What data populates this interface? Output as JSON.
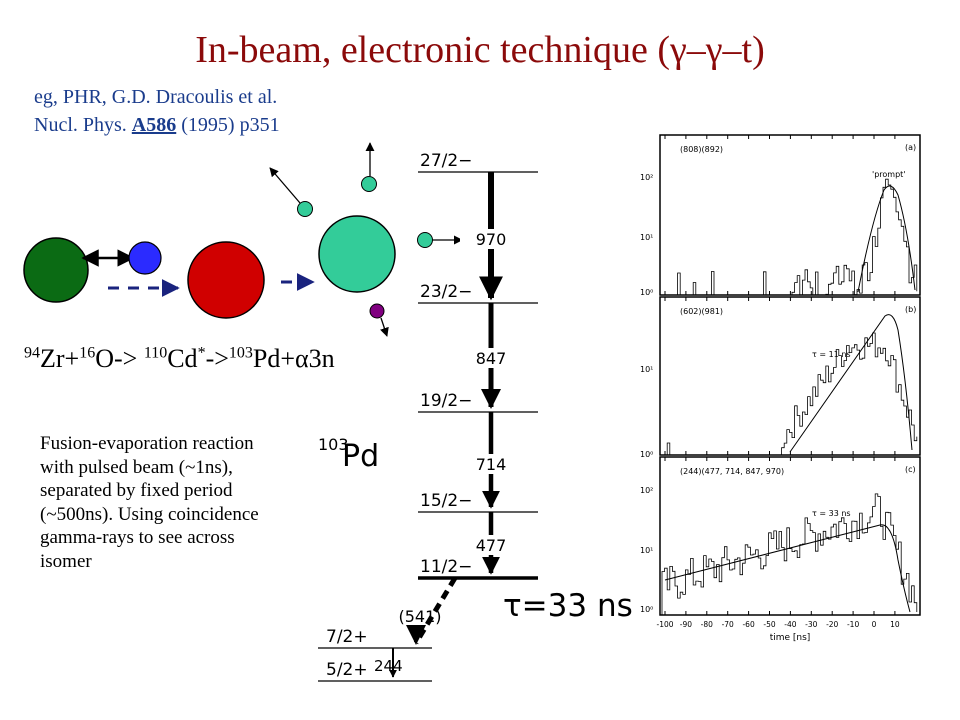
{
  "title": "In-beam, electronic technique (γ–γ–t)",
  "reference": {
    "line1": "eg, PHR, G.D. Dracoulis et al.",
    "line2_prefix": "Nucl. Phys.",
    "volume": "A586",
    "line2_suffix": "(1995) p351"
  },
  "reaction": {
    "target_mass": "94",
    "target": "Zr+",
    "beam_mass": "16",
    "beam": "O->",
    "compound_mass": "110",
    "compound": "Cd",
    "compound_star": "*",
    "arrow": "->",
    "product_mass": "103",
    "product": "Pd+α3n"
  },
  "description": "Fusion-evaporation reaction with pulsed beam (~1ns), separated by fixed period (~500ns). Using coincidence gamma-rays to see across isomer",
  "colors": {
    "title": "#8b0a0a",
    "reference": "#1a3c8c",
    "target": "#0b6b14",
    "beam": "#2b2bff",
    "compound": "#d00000",
    "residue": "#33cc99",
    "alpha": "#800080"
  },
  "level_scheme": {
    "nucleus_mass": "103",
    "nucleus": "Pd",
    "levels": [
      "27/2−",
      "23/2−",
      "19/2−",
      "15/2−",
      "11/2−",
      "7/2+",
      "5/2+"
    ],
    "transitions": [
      "970",
      "847",
      "714",
      "477",
      "(541)",
      "244"
    ],
    "isomer_lifetime": "τ=33 ns"
  },
  "spectra_panels": [
    {
      "gate": "(808)(892)",
      "tag": "(a)",
      "annotation": "'prompt'"
    },
    {
      "gate": "(602)(981)",
      "tag": "(b)",
      "annotation": "τ = 11 ns"
    },
    {
      "gate": "(244)(477, 714, 847, 970)",
      "tag": "(c)",
      "annotation": "τ = 33 ns"
    }
  ],
  "spectra_axis": {
    "xlabel": "time [ns]",
    "xticks": [
      "-100",
      "-90",
      "-80",
      "-70",
      "-60",
      "-50",
      "-40",
      "-30",
      "-20",
      "-10",
      "0",
      "10"
    ],
    "ytick_labels": [
      "10⁰",
      "10¹",
      "10²"
    ]
  }
}
